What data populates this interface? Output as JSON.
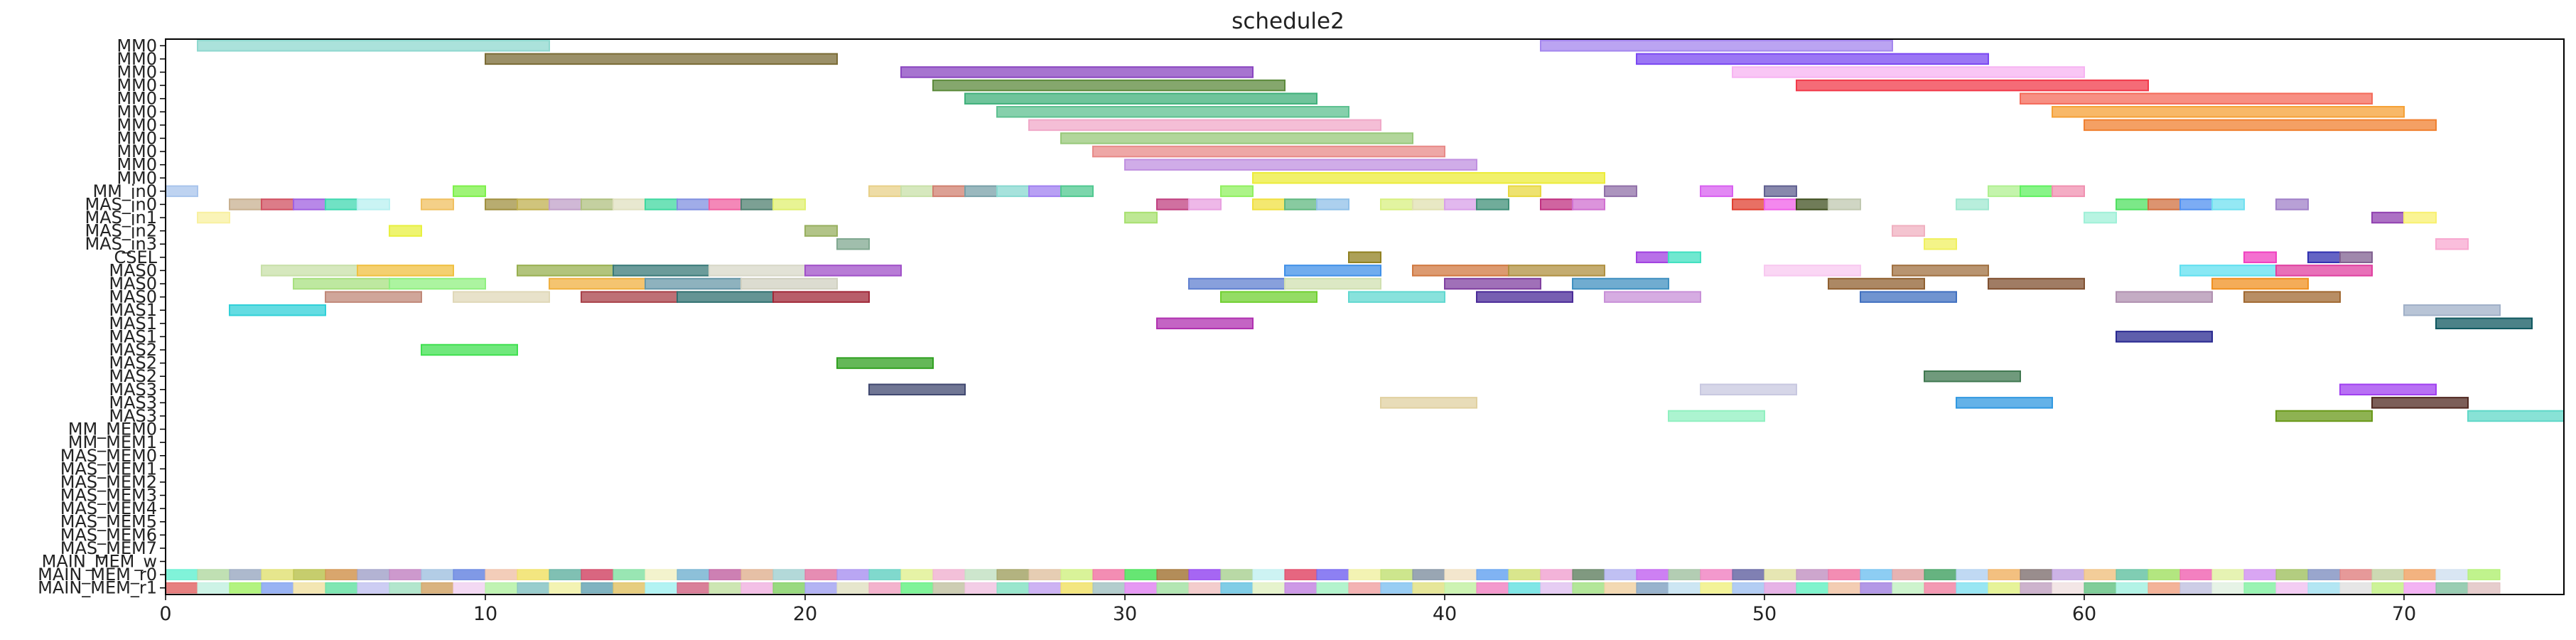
{
  "chart_data": {
    "type": "gantt",
    "title": "schedule2",
    "xlim": [
      0,
      75
    ],
    "x_ticks": [
      0,
      10,
      20,
      30,
      40,
      50,
      60,
      70
    ],
    "rows": [
      "MM0",
      "MM0",
      "MM0",
      "MM0",
      "MM0",
      "MM0",
      "MM0",
      "MM0",
      "MM0",
      "MM0",
      "MM0",
      "MM_in0",
      "MAS_in0",
      "MAS_in1",
      "MAS_in2",
      "MAS_in3",
      "CSEL",
      "MAS0",
      "MAS0",
      "MAS0",
      "MAS1",
      "MAS1",
      "MAS1",
      "MAS2",
      "MAS2",
      "MAS2",
      "MAS3",
      "MAS3",
      "MAS3",
      "MM_MEM0",
      "MM_MEM1",
      "MAS_MEM0",
      "MAS_MEM1",
      "MAS_MEM2",
      "MAS_MEM3",
      "MAS_MEM4",
      "MAS_MEM5",
      "MAS_MEM6",
      "MAS_MEM7",
      "MAIN_MEM_w",
      "MAIN_MEM_r0",
      "MAIN_MEM_r1"
    ],
    "bars": [
      {
        "row": 0,
        "start": 1,
        "end": 12,
        "color": "#8fd8cf"
      },
      {
        "row": 0,
        "start": 43,
        "end": 54,
        "color": "#a486ee"
      },
      {
        "row": 1,
        "start": 10,
        "end": 21,
        "color": "#7a6b35"
      },
      {
        "row": 1,
        "start": 46,
        "end": 57,
        "color": "#7a48f2"
      },
      {
        "row": 2,
        "start": 23,
        "end": 34,
        "color": "#8a45c0"
      },
      {
        "row": 2,
        "start": 49,
        "end": 60,
        "color": "#f7b3f2"
      },
      {
        "row": 3,
        "start": 24,
        "end": 35,
        "color": "#5c8a3c"
      },
      {
        "row": 3,
        "start": 51,
        "end": 62,
        "color": "#f23a4a"
      },
      {
        "row": 4,
        "start": 25,
        "end": 36,
        "color": "#3fb07a"
      },
      {
        "row": 4,
        "start": 58,
        "end": 69,
        "color": "#f46a5a"
      },
      {
        "row": 5,
        "start": 26,
        "end": 37,
        "color": "#5dc090"
      },
      {
        "row": 5,
        "start": 59,
        "end": 70,
        "color": "#f5a035"
      },
      {
        "row": 6,
        "start": 27,
        "end": 38,
        "color": "#f0a8c8"
      },
      {
        "row": 6,
        "start": 60,
        "end": 71,
        "color": "#f08030"
      },
      {
        "row": 7,
        "start": 28,
        "end": 39,
        "color": "#98c87a"
      },
      {
        "row": 8,
        "start": 29,
        "end": 40,
        "color": "#e88a88"
      },
      {
        "row": 9,
        "start": 30,
        "end": 41,
        "color": "#c090e0"
      },
      {
        "row": 10,
        "start": 34,
        "end": 45,
        "color": "#ecec3a"
      },
      {
        "row": 11,
        "start": 0,
        "end": 1,
        "color": "#a8c4ec"
      },
      {
        "row": 11,
        "start": 9,
        "end": 10,
        "color": "#7ef04a"
      },
      {
        "row": 11,
        "start": 22,
        "end": 23,
        "color": "#e8d088"
      },
      {
        "row": 11,
        "start": 23,
        "end": 24,
        "color": "#c8e0a8"
      },
      {
        "row": 11,
        "start": 24,
        "end": 25,
        "color": "#d08070"
      },
      {
        "row": 11,
        "start": 25,
        "end": 26,
        "color": "#78a0a8"
      },
      {
        "row": 11,
        "start": 26,
        "end": 27,
        "color": "#88d8d0"
      },
      {
        "row": 11,
        "start": 27,
        "end": 28,
        "color": "#a080f0"
      },
      {
        "row": 11,
        "start": 28,
        "end": 29,
        "color": "#50c890"
      },
      {
        "row": 11,
        "start": 33,
        "end": 34,
        "color": "#90f060"
      },
      {
        "row": 11,
        "start": 42,
        "end": 43,
        "color": "#e8d840"
      },
      {
        "row": 11,
        "start": 45,
        "end": 46,
        "color": "#9070a8"
      },
      {
        "row": 11,
        "start": 48,
        "end": 49,
        "color": "#d860f0"
      },
      {
        "row": 11,
        "start": 50,
        "end": 51,
        "color": "#606090"
      },
      {
        "row": 11,
        "start": 57,
        "end": 58,
        "color": "#b0f090"
      },
      {
        "row": 11,
        "start": 58,
        "end": 59,
        "color": "#60f060"
      },
      {
        "row": 11,
        "start": 59,
        "end": 60,
        "color": "#f090b0"
      },
      {
        "row": 12,
        "start": 2,
        "end": 3,
        "color": "#c8b090"
      },
      {
        "row": 12,
        "start": 3,
        "end": 4,
        "color": "#d05060"
      },
      {
        "row": 12,
        "start": 4,
        "end": 5,
        "color": "#a060e0"
      },
      {
        "row": 12,
        "start": 5,
        "end": 6,
        "color": "#40d8b0"
      },
      {
        "row": 12,
        "start": 6,
        "end": 7,
        "color": "#b8f0f0"
      },
      {
        "row": 12,
        "start": 8,
        "end": 9,
        "color": "#f0c060"
      },
      {
        "row": 12,
        "start": 10,
        "end": 11,
        "color": "#a09040"
      },
      {
        "row": 12,
        "start": 11,
        "end": 12,
        "color": "#c0b050"
      },
      {
        "row": 12,
        "start": 12,
        "end": 13,
        "color": "#c0a0c8"
      },
      {
        "row": 12,
        "start": 13,
        "end": 14,
        "color": "#b0c080"
      },
      {
        "row": 12,
        "start": 14,
        "end": 15,
        "color": "#e0e0c0"
      },
      {
        "row": 12,
        "start": 15,
        "end": 16,
        "color": "#40d8a0"
      },
      {
        "row": 12,
        "start": 16,
        "end": 17,
        "color": "#8090e0"
      },
      {
        "row": 12,
        "start": 17,
        "end": 18,
        "color": "#f060a0"
      },
      {
        "row": 12,
        "start": 18,
        "end": 19,
        "color": "#508070"
      },
      {
        "row": 12,
        "start": 19,
        "end": 20,
        "color": "#e0f070"
      },
      {
        "row": 12,
        "start": 31,
        "end": 32,
        "color": "#c04080"
      },
      {
        "row": 12,
        "start": 32,
        "end": 33,
        "color": "#e8a0e0"
      },
      {
        "row": 12,
        "start": 34,
        "end": 35,
        "color": "#f0e040"
      },
      {
        "row": 12,
        "start": 35,
        "end": 36,
        "color": "#60b880"
      },
      {
        "row": 12,
        "start": 36,
        "end": 37,
        "color": "#90c0e8"
      },
      {
        "row": 12,
        "start": 38,
        "end": 39,
        "color": "#d8f080"
      },
      {
        "row": 12,
        "start": 39,
        "end": 40,
        "color": "#e0e0b0"
      },
      {
        "row": 12,
        "start": 40,
        "end": 41,
        "color": "#d8a0e8"
      },
      {
        "row": 12,
        "start": 41,
        "end": 42,
        "color": "#409078"
      },
      {
        "row": 12,
        "start": 43,
        "end": 44,
        "color": "#c03080"
      },
      {
        "row": 12,
        "start": 44,
        "end": 45,
        "color": "#d070d0"
      },
      {
        "row": 12,
        "start": 49,
        "end": 50,
        "color": "#e04030"
      },
      {
        "row": 12,
        "start": 50,
        "end": 51,
        "color": "#f060e8"
      },
      {
        "row": 12,
        "start": 51,
        "end": 52,
        "color": "#405020"
      },
      {
        "row": 12,
        "start": 52,
        "end": 53,
        "color": "#c0c8b0"
      },
      {
        "row": 12,
        "start": 56,
        "end": 57,
        "color": "#a0e8d0"
      },
      {
        "row": 12,
        "start": 61,
        "end": 62,
        "color": "#50e060"
      },
      {
        "row": 12,
        "start": 62,
        "end": 63,
        "color": "#d07040"
      },
      {
        "row": 12,
        "start": 63,
        "end": 64,
        "color": "#5090f0"
      },
      {
        "row": 12,
        "start": 64,
        "end": 65,
        "color": "#70e0f0"
      },
      {
        "row": 12,
        "start": 66,
        "end": 67,
        "color": "#a080c8"
      },
      {
        "row": 13,
        "start": 1,
        "end": 2,
        "color": "#f8f0a0"
      },
      {
        "row": 13,
        "start": 30,
        "end": 31,
        "color": "#a8e070"
      },
      {
        "row": 13,
        "start": 60,
        "end": 61,
        "color": "#a0f0d8"
      },
      {
        "row": 13,
        "start": 69,
        "end": 70,
        "color": "#9040b0"
      },
      {
        "row": 13,
        "start": 70,
        "end": 71,
        "color": "#f8f070"
      },
      {
        "row": 14,
        "start": 7,
        "end": 8,
        "color": "#e8f040"
      },
      {
        "row": 14,
        "start": 20,
        "end": 21,
        "color": "#98b060"
      },
      {
        "row": 14,
        "start": 54,
        "end": 55,
        "color": "#f0b0c0"
      },
      {
        "row": 15,
        "start": 21,
        "end": 22,
        "color": "#80a890"
      },
      {
        "row": 15,
        "start": 55,
        "end": 56,
        "color": "#f0f060"
      },
      {
        "row": 15,
        "start": 71,
        "end": 72,
        "color": "#f8a8d0"
      },
      {
        "row": 16,
        "start": 37,
        "end": 38,
        "color": "#908020"
      },
      {
        "row": 16,
        "start": 46,
        "end": 47,
        "color": "#a040e0"
      },
      {
        "row": 16,
        "start": 47,
        "end": 48,
        "color": "#40e0c0"
      },
      {
        "row": 16,
        "start": 65,
        "end": 66,
        "color": "#f040c0"
      },
      {
        "row": 16,
        "start": 67,
        "end": 68,
        "color": "#3030b0"
      },
      {
        "row": 16,
        "start": 68,
        "end": 69,
        "color": "#806090"
      },
      {
        "row": 17,
        "start": 3,
        "end": 6,
        "color": "#c8e0a8"
      },
      {
        "row": 17,
        "start": 6,
        "end": 9,
        "color": "#f0c040"
      },
      {
        "row": 17,
        "start": 11,
        "end": 14,
        "color": "#98b050"
      },
      {
        "row": 17,
        "start": 14,
        "end": 17,
        "color": "#3a7a78"
      },
      {
        "row": 17,
        "start": 17,
        "end": 20,
        "color": "#d8d8c8"
      },
      {
        "row": 17,
        "start": 20,
        "end": 23,
        "color": "#a050c8"
      },
      {
        "row": 17,
        "start": 35,
        "end": 38,
        "color": "#4090e8"
      },
      {
        "row": 17,
        "start": 39,
        "end": 42,
        "color": "#d07840"
      },
      {
        "row": 17,
        "start": 42,
        "end": 45,
        "color": "#b09040"
      },
      {
        "row": 17,
        "start": 50,
        "end": 53,
        "color": "#f8c8f0"
      },
      {
        "row": 17,
        "start": 54,
        "end": 57,
        "color": "#a07040"
      },
      {
        "row": 17,
        "start": 63,
        "end": 66,
        "color": "#60e0f0"
      },
      {
        "row": 17,
        "start": 66,
        "end": 69,
        "color": "#e040a0"
      },
      {
        "row": 18,
        "start": 4,
        "end": 7,
        "color": "#a8e080"
      },
      {
        "row": 18,
        "start": 7,
        "end": 10,
        "color": "#90f080"
      },
      {
        "row": 18,
        "start": 12,
        "end": 15,
        "color": "#f0b040"
      },
      {
        "row": 18,
        "start": 15,
        "end": 18,
        "color": "#6898a8"
      },
      {
        "row": 18,
        "start": 18,
        "end": 21,
        "color": "#d0d0c0"
      },
      {
        "row": 18,
        "start": 32,
        "end": 35,
        "color": "#6080d0"
      },
      {
        "row": 18,
        "start": 35,
        "end": 38,
        "color": "#d0e0b0"
      },
      {
        "row": 18,
        "start": 40,
        "end": 43,
        "color": "#8040a0"
      },
      {
        "row": 18,
        "start": 44,
        "end": 47,
        "color": "#4090c0"
      },
      {
        "row": 18,
        "start": 52,
        "end": 55,
        "color": "#906030"
      },
      {
        "row": 18,
        "start": 57,
        "end": 60,
        "color": "#805030"
      },
      {
        "row": 18,
        "start": 64,
        "end": 67,
        "color": "#f09020"
      },
      {
        "row": 19,
        "start": 5,
        "end": 8,
        "color": "#c08878"
      },
      {
        "row": 19,
        "start": 9,
        "end": 12,
        "color": "#e0d8b8"
      },
      {
        "row": 19,
        "start": 13,
        "end": 16,
        "color": "#a84048"
      },
      {
        "row": 19,
        "start": 16,
        "end": 19,
        "color": "#307070"
      },
      {
        "row": 19,
        "start": 19,
        "end": 22,
        "color": "#a02838"
      },
      {
        "row": 19,
        "start": 33,
        "end": 36,
        "color": "#70d030"
      },
      {
        "row": 19,
        "start": 37,
        "end": 40,
        "color": "#60d8d0"
      },
      {
        "row": 19,
        "start": 41,
        "end": 44,
        "color": "#4a2a98"
      },
      {
        "row": 19,
        "start": 45,
        "end": 48,
        "color": "#c890d8"
      },
      {
        "row": 19,
        "start": 53,
        "end": 56,
        "color": "#4070c0"
      },
      {
        "row": 19,
        "start": 61,
        "end": 64,
        "color": "#b090b0"
      },
      {
        "row": 19,
        "start": 65,
        "end": 68,
        "color": "#a06830"
      },
      {
        "row": 20,
        "start": 2,
        "end": 5,
        "color": "#30d0d8"
      },
      {
        "row": 20,
        "start": 70,
        "end": 73,
        "color": "#a0b0c8"
      },
      {
        "row": 21,
        "start": 31,
        "end": 34,
        "color": "#b030b0"
      },
      {
        "row": 21,
        "start": 71,
        "end": 74,
        "color": "#105860"
      },
      {
        "row": 22,
        "start": 61,
        "end": 64,
        "color": "#282890"
      },
      {
        "row": 23,
        "start": 8,
        "end": 11,
        "color": "#40e050"
      },
      {
        "row": 24,
        "start": 21,
        "end": 24,
        "color": "#30a020"
      },
      {
        "row": 25,
        "start": 55,
        "end": 58,
        "color": "#407850"
      },
      {
        "row": 26,
        "start": 22,
        "end": 25,
        "color": "#404870"
      },
      {
        "row": 26,
        "start": 48,
        "end": 51,
        "color": "#c8c8e0"
      },
      {
        "row": 26,
        "start": 68,
        "end": 71,
        "color": "#a040f0"
      },
      {
        "row": 27,
        "start": 38,
        "end": 41,
        "color": "#e0d0a0"
      },
      {
        "row": 27,
        "start": 56,
        "end": 59,
        "color": "#3098e0"
      },
      {
        "row": 27,
        "start": 69,
        "end": 72,
        "color": "#502820"
      },
      {
        "row": 28,
        "start": 47,
        "end": 50,
        "color": "#90f0c0"
      },
      {
        "row": 28,
        "start": 66,
        "end": 69,
        "color": "#689818"
      },
      {
        "row": 28,
        "start": 72,
        "end": 75,
        "color": "#60d8c8"
      }
    ],
    "mem_rows": [
      {
        "row": 40,
        "colors": [
          "#60f0d0",
          "#b0d8a0",
          "#98a8c0",
          "#e0e070",
          "#b8c048",
          "#d09048",
          "#a0a0c8",
          "#c080c0",
          "#a0c0e0",
          "#6080e0",
          "#f0c0a8",
          "#f0e060",
          "#60b0a0",
          "#d04060",
          "#80e0a0",
          "#f0f0c0",
          "#70b0d0",
          "#c060a0",
          "#e0b090",
          "#a0d0d0",
          "#e070a0",
          "#a890f0",
          "#60d0c0",
          "#e0f090",
          "#f0b0d0",
          "#c0e0c0",
          "#a0a060",
          "#e0c0a0",
          "#d0f080",
          "#f070a0",
          "#40e050",
          "#a07030",
          "#9040f0",
          "#a8d090",
          "#c0f0f0",
          "#e04060",
          "#7060f0",
          "#f0f0a0",
          "#c0e070",
          "#8090a0",
          "#f0e0c0",
          "#60a0f0",
          "#d0e070",
          "#f0a0d0",
          "#608060",
          "#b0b0f0",
          "#c060f0",
          "#a0c0a0",
          "#f080c0",
          "#6060a0",
          "#e0e0a0",
          "#c090c0",
          "#f070a0",
          "#70c0f0",
          "#e0a0a0",
          "#40a060",
          "#b0d0f0",
          "#f0b060",
          "#807070",
          "#c0a0e0",
          "#f0c080",
          "#60c0a0",
          "#a0e060",
          "#f060b0",
          "#e0f0a0",
          "#d090f0",
          "#a0c060",
          "#8090c0",
          "#e08080",
          "#c0d0a0",
          "#f0a060",
          "#d0e0f0",
          "#b0f070",
          "#f0b0b0",
          "#e0a0f0"
        ]
      },
      {
        "row": 41,
        "colors": [
          "#e06060",
          "#c0f0e0",
          "#a0f060",
          "#80a0f0",
          "#f0e0a0",
          "#60e0a0",
          "#c0c0f0",
          "#a0e0c0",
          "#d0a060",
          "#f0d0f0",
          "#b0f0a0",
          "#80c0c0",
          "#f0f0a0",
          "#60a0b0",
          "#e0c060",
          "#a0f0f0",
          "#d06080",
          "#c0e0a0",
          "#f0b0e0",
          "#80d060",
          "#a0a0f0",
          "#e0e0c0",
          "#f0a0c0",
          "#60f080",
          "#c0c0a0",
          "#f0c0e0",
          "#80e0c0",
          "#c0a0f0",
          "#f0e060",
          "#a0c0c0",
          "#e080f0",
          "#a0e0a0",
          "#f0c0c0",
          "#60c0e0",
          "#e0f0c0",
          "#c080e0",
          "#a0f0c0",
          "#f0a0a0",
          "#80c0f0",
          "#e0e080",
          "#c0f0a0",
          "#f080c0",
          "#60e0e0",
          "#e0c0f0",
          "#a0e080",
          "#f0d0a0",
          "#80a0c0",
          "#c0e0f0",
          "#f0f080",
          "#a0c0f0",
          "#e0a0e0",
          "#60f0c0",
          "#f0c0a0",
          "#a080e0",
          "#c0f0c0",
          "#f080a0",
          "#80e0f0",
          "#e0f080",
          "#c0a0c0",
          "#f0e0e0",
          "#60c080",
          "#a0f0e0",
          "#f0a080",
          "#c0c0e0",
          "#e0f0e0",
          "#80f0a0",
          "#f0c0f0",
          "#a0e0f0",
          "#e0e0e0",
          "#c0f080",
          "#f0a0f0",
          "#80c0a0",
          "#e0c0c0",
          "#f0f0c0",
          "#c0e0e0"
        ]
      }
    ]
  }
}
